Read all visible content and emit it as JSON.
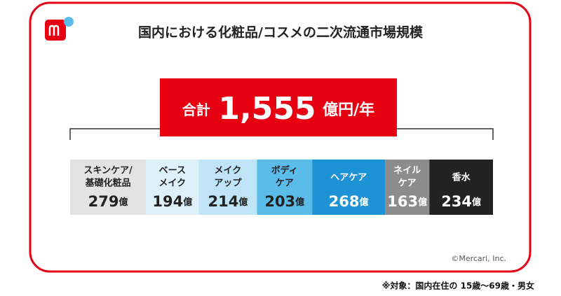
{
  "chart_data": {
    "type": "stacked-bar",
    "title": "国内における化粧品/コスメの二次流通市場規模",
    "total_prefix": "合計",
    "total": 1555,
    "total_label": "1,555",
    "total_unit": "億円/年",
    "categories": [
      [
        "スキンケア/",
        "基礎化粧品"
      ],
      [
        "ベース",
        "メイク"
      ],
      [
        "メイク",
        "アップ"
      ],
      [
        "ボディ",
        "ケア"
      ],
      [
        "ヘアケア"
      ],
      [
        "ネイル",
        "ケア"
      ],
      [
        "香水"
      ]
    ],
    "values": [
      279,
      194,
      214,
      203,
      268,
      163,
      234
    ],
    "unit": "億",
    "colors": [
      "#e3e3e3",
      "#def1fa",
      "#bfe4f7",
      "#5bbbe9",
      "#1d93d6",
      "#8c8c8c",
      "#222222"
    ],
    "text_colors": [
      "#222222",
      "#222222",
      "#222222",
      "#222222",
      "#ffffff",
      "#ffffff",
      "#ffffff"
    ],
    "copyright": "©Mercari, Inc.",
    "note": "※対象：国内在住の 15歳〜69歳・男女"
  }
}
